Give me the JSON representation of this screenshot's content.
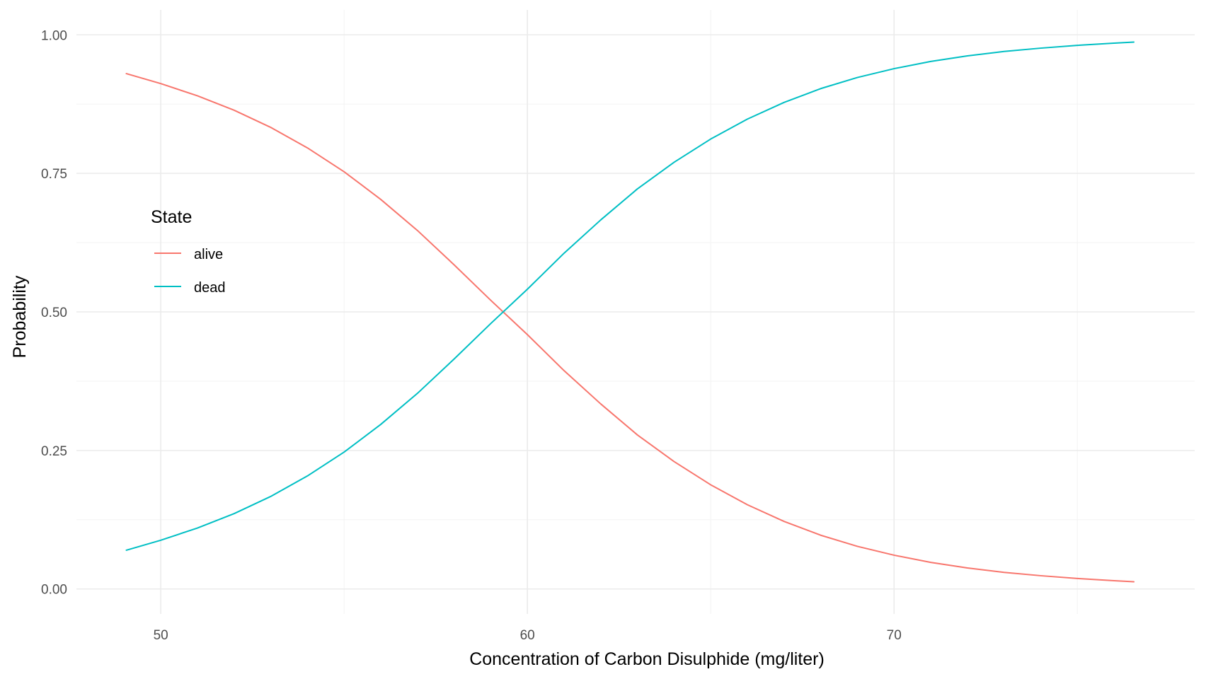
{
  "chart_data": {
    "type": "line",
    "title": "",
    "xlabel": "Concentration of Carbon Disulphide (mg/liter)",
    "ylabel": "Probability",
    "xlim": [
      47.7,
      78.2
    ],
    "ylim": [
      -0.045,
      1.045
    ],
    "x_major_ticks": [
      50,
      60,
      70
    ],
    "x_tick_labels": [
      "50",
      "60",
      "70"
    ],
    "x_minor_ticks": [
      55,
      65,
      75
    ],
    "y_major_ticks": [
      0,
      0.25,
      0.5,
      0.75,
      1.0
    ],
    "y_tick_labels": [
      "0.00",
      "0.25",
      "0.50",
      "0.75",
      "1.00"
    ],
    "y_minor_ticks": [
      0.125,
      0.375,
      0.625,
      0.875
    ],
    "grid": true,
    "legend": {
      "title": "State",
      "placement": "left-inside",
      "entries": [
        "alive",
        "dead"
      ]
    },
    "x": [
      49.06,
      50,
      51,
      52,
      53,
      54,
      55,
      56,
      57,
      58,
      59,
      60,
      61,
      62,
      63,
      64,
      65,
      66,
      67,
      68,
      69,
      70,
      71,
      72,
      73,
      74,
      75,
      76,
      76.54
    ],
    "series": [
      {
        "name": "alive",
        "color": "#F8766D",
        "values": [
          0.93,
          0.912,
          0.89,
          0.864,
          0.833,
          0.796,
          0.753,
          0.703,
          0.647,
          0.585,
          0.521,
          0.459,
          0.394,
          0.334,
          0.278,
          0.23,
          0.188,
          0.152,
          0.122,
          0.097,
          0.077,
          0.061,
          0.048,
          0.038,
          0.03,
          0.024,
          0.019,
          0.015,
          0.013
        ]
      },
      {
        "name": "dead",
        "color": "#00BFC4",
        "values": [
          0.07,
          0.088,
          0.11,
          0.136,
          0.167,
          0.204,
          0.247,
          0.297,
          0.353,
          0.415,
          0.479,
          0.541,
          0.606,
          0.666,
          0.722,
          0.77,
          0.812,
          0.848,
          0.878,
          0.903,
          0.923,
          0.939,
          0.952,
          0.962,
          0.97,
          0.976,
          0.981,
          0.985,
          0.987
        ]
      }
    ]
  }
}
